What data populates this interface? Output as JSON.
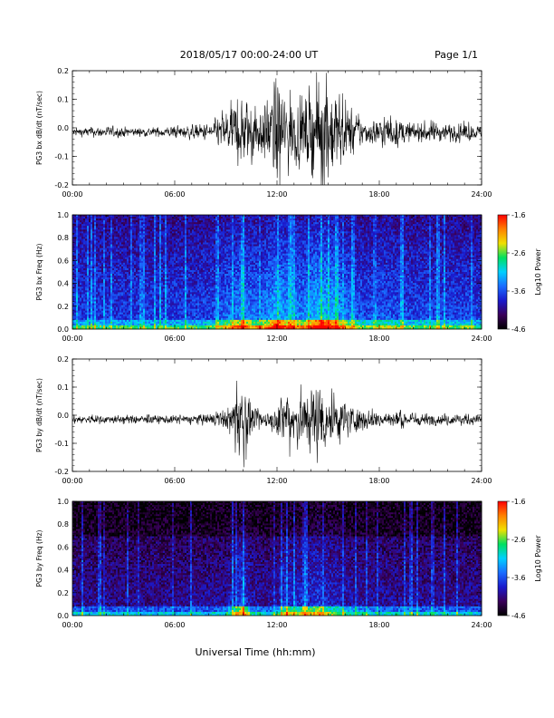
{
  "header": {
    "title": "2018/05/17  00:00-24:00 UT",
    "page_label": "Page 1/1"
  },
  "xaxis_label": "Universal Time (hh:mm)",
  "colorbar": {
    "label": "Log10 Power",
    "ticks": [
      "-1.6",
      "-2.6",
      "-3.6",
      "-4.6"
    ],
    "colors": [
      "#000000",
      "#3a005a",
      "#1a1acc",
      "#1a6cff",
      "#00d0ff",
      "#00e060",
      "#f0e000",
      "#ff8000",
      "#ff0000"
    ]
  },
  "chart_data": [
    {
      "type": "line",
      "ylabel": "PG3 bx dB/dt (nT/sec)",
      "x_ticks": [
        "00:00",
        "06:00",
        "12:00",
        "18:00",
        "24:00"
      ],
      "xlim": [
        0,
        24
      ],
      "y_ticks": [
        "0.2",
        "0.1",
        "0.0",
        "-0.1",
        "-0.2"
      ],
      "ylim": [
        -0.2,
        0.2
      ],
      "series": [
        {
          "x": [
            0,
            2,
            4,
            6,
            8,
            8.5,
            9,
            9.5,
            10,
            10.5,
            11,
            11.5,
            12,
            12.5,
            13,
            13.5,
            14,
            14.5,
            15,
            15.5,
            16,
            16.5,
            17,
            17.5,
            18,
            19,
            20,
            21,
            22,
            23,
            24
          ],
          "values": [
            0.015,
            0.02,
            0.015,
            0.02,
            0.03,
            0.05,
            0.08,
            0.11,
            0.13,
            0.1,
            0.09,
            0.12,
            0.2,
            0.14,
            0.12,
            0.11,
            0.15,
            0.2,
            0.18,
            0.16,
            0.1,
            0.08,
            0.05,
            0.04,
            0.06,
            0.05,
            0.03,
            0.04,
            0.03,
            0.035,
            0.02
          ]
        }
      ]
    },
    {
      "type": "heatmap",
      "ylabel": "PG3 bx Freq (Hz)",
      "x_ticks": [
        "00:00",
        "06:00",
        "12:00",
        "18:00",
        "24:00"
      ],
      "xlim": [
        0,
        24
      ],
      "y_ticks": [
        "1.0",
        "0.8",
        "0.6",
        "0.4",
        "0.2",
        "0.0"
      ],
      "ylim": [
        0,
        1.0
      ],
      "zlim": [
        -4.6,
        -1.6
      ]
    },
    {
      "type": "line",
      "ylabel": "PG3 by dB/dt (nT/sec)",
      "x_ticks": [
        "00:00",
        "06:00",
        "12:00",
        "18:00",
        "24:00"
      ],
      "xlim": [
        0,
        24
      ],
      "y_ticks": [
        "0.2",
        "0.1",
        "0.0",
        "-0.1",
        "-0.2"
      ],
      "ylim": [
        -0.2,
        0.2
      ],
      "series": [
        {
          "x": [
            0,
            2,
            4,
            6,
            8,
            9,
            9.5,
            10,
            10.5,
            11,
            11.5,
            12,
            12.5,
            13,
            13.5,
            14,
            14.5,
            15,
            15.5,
            16,
            16.5,
            17,
            18,
            19,
            20,
            21,
            22,
            23,
            24
          ],
          "values": [
            0.015,
            0.015,
            0.015,
            0.015,
            0.02,
            0.03,
            0.1,
            0.17,
            0.05,
            0.03,
            0.03,
            0.05,
            0.13,
            0.1,
            0.11,
            0.12,
            0.15,
            0.1,
            0.09,
            0.07,
            0.05,
            0.04,
            0.03,
            0.03,
            0.025,
            0.02,
            0.02,
            0.02,
            0.015
          ]
        }
      ]
    },
    {
      "type": "heatmap",
      "ylabel": "PG3 by Freq (Hz)",
      "x_ticks": [
        "00:00",
        "06:00",
        "12:00",
        "18:00",
        "24:00"
      ],
      "xlim": [
        0,
        24
      ],
      "y_ticks": [
        "1.0",
        "0.8",
        "0.6",
        "0.4",
        "0.2",
        "0.0"
      ],
      "ylim": [
        0,
        1.0
      ],
      "zlim": [
        -4.6,
        -1.6
      ]
    }
  ]
}
